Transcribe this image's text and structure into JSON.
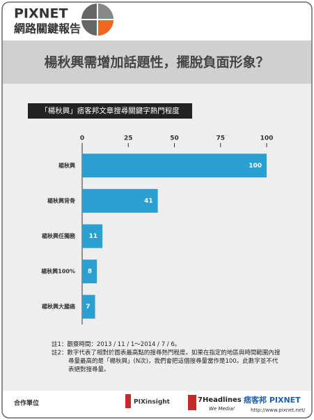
{
  "header": {
    "brand": "PIXNET",
    "subtitle": "網路關鍵報告"
  },
  "chart_data": {
    "type": "bar",
    "orientation": "horizontal",
    "title": "楊秋興需增加話題性，擺脫負面形象？",
    "subtitle": "「楊秋興」痞客邦文章搜尋關鍵字熱門程度",
    "categories": [
      "楊秋興",
      "楊秋興背骨",
      "楊秋興任獨務",
      "楊秋興100%",
      "楊秋興大腸癌"
    ],
    "values": [
      100,
      41,
      11,
      8,
      7
    ],
    "color": "#2a9fd0",
    "xlim": [
      0,
      100
    ],
    "xticks": [
      0,
      25,
      50,
      75,
      100
    ],
    "grid": false
  },
  "notes": [
    "註1：觀察時間：2013 / 11 / 1～2014 / 7 / 6。",
    "註2：數字代表了相對於圖表最高點的搜尋熱門程度。如果在指定的地區與時間範圍內搜尋量最高的是「楊秋興」(N次)，我們會把這個搜尋量當作是100。此數字並不代表絕對搜尋量。"
  ],
  "footer": {
    "partners": "合作單位",
    "logo1": "PIXinsight",
    "logo2": "7Headlines",
    "logo2_tag": "We Media!",
    "logo3": "痞客邦 PIXNET",
    "url": "http://www.pixnet.net/"
  }
}
